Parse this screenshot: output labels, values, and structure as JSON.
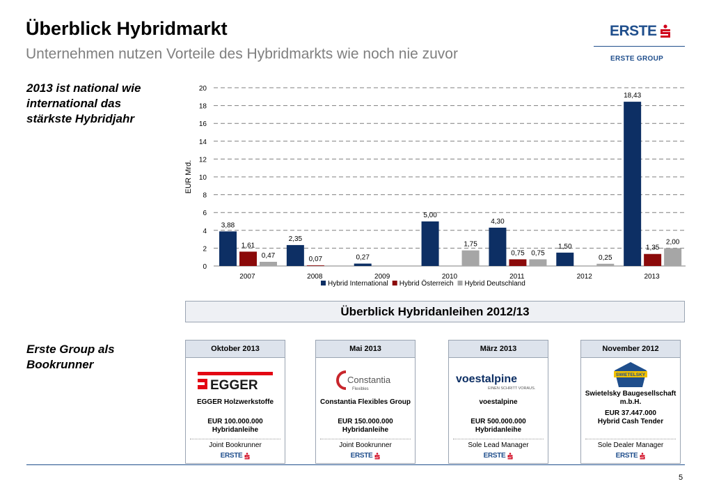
{
  "header": {
    "title": "Überblick Hybridmarkt",
    "subtitle": "Unternehmen nutzen Vorteile des Hybridmarkts wie noch nie zuvor"
  },
  "brand": {
    "logo_word": "ERSTE",
    "group_name": "ERSTE GROUP",
    "color": "#1f4e8c",
    "accent": "#d0021b"
  },
  "side_text": {
    "top": "2013 ist national wie international das stärkste Hybridjahr",
    "bottom": "Erste Group als Bookrunner"
  },
  "chart_data": {
    "type": "bar",
    "categories": [
      "2007",
      "2008",
      "2009",
      "2010",
      "2011",
      "2012",
      "2013"
    ],
    "series": [
      {
        "name": "Hybrid International",
        "color": "#0d2f64",
        "values": [
          3.88,
          2.35,
          0.27,
          5.0,
          4.3,
          1.5,
          18.43
        ],
        "labels": [
          "3,88",
          "2,35",
          "0,27",
          "5,00",
          "4,30",
          "1,50",
          "18,43"
        ]
      },
      {
        "name": "Hybrid Österreich",
        "color": "#8b0a0a",
        "values": [
          1.61,
          0.07,
          null,
          null,
          0.75,
          null,
          1.35
        ],
        "labels": [
          "1,61",
          "0,07",
          "",
          "",
          "0,75",
          "",
          "1,35"
        ]
      },
      {
        "name": "Hybrid Deutschland",
        "color": "#a6a6a6",
        "values": [
          0.47,
          null,
          null,
          1.75,
          0.75,
          0.25,
          2.0
        ],
        "labels": [
          "0,47",
          "",
          "",
          "1,75",
          "0,75",
          "0,25",
          "2,00"
        ]
      }
    ],
    "ylabel": "EUR Mrd.",
    "ylim": [
      0,
      20
    ],
    "yticks": [
      "0",
      "2",
      "4",
      "6",
      "8",
      "10",
      "12",
      "14",
      "16",
      "18",
      "20"
    ],
    "grid": true,
    "legend_position": "bottom"
  },
  "banner": "Überblick Hybridanleihen 2012/13",
  "deals": [
    {
      "date": "Oktober 2013",
      "logo_text": "EGGER",
      "company": "EGGER Holzwerkstoffe",
      "amount": "EUR 100.000.000",
      "type": "Hybridanleihe",
      "role": "Joint Bookrunner"
    },
    {
      "date": "Mai 2013",
      "logo_text": "Constantia",
      "logo_sub": "Flexibles",
      "company": "Constantia Flexibles Group",
      "amount": "EUR 150.000.000",
      "type": "Hybridanleihe",
      "role": "Joint Bookrunner"
    },
    {
      "date": "März 2013",
      "logo_text": "voestalpine",
      "logo_sub": "EINEN SCHRITT VORAUS.",
      "company": "voestalpine",
      "amount": "EUR 500.000.000",
      "type": "Hybridanleihe",
      "role": "Sole Lead Manager"
    },
    {
      "date": "November 2012",
      "logo_text": "SWIETELSKY",
      "company": "Swietelsky Baugesellschaft m.b.H.",
      "amount": "EUR 37.447.000",
      "type": "Hybrid Cash Tender",
      "role": "Sole Dealer Manager"
    }
  ],
  "footer": {
    "page": "5"
  }
}
